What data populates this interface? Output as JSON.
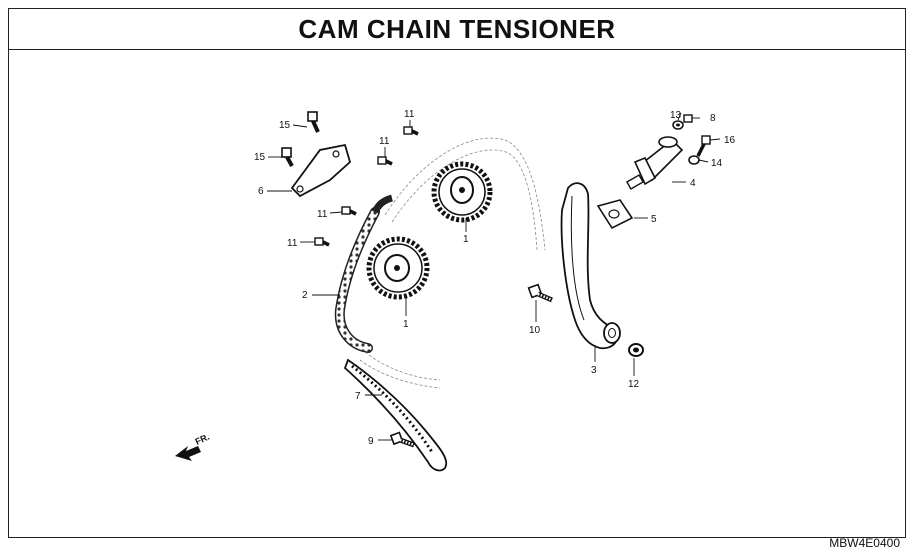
{
  "title": "CAM CHAIN TENSIONER",
  "drawing_code": "MBW4E0400",
  "direction_label": "FR.",
  "callouts": {
    "c1a": "1",
    "c1b": "1",
    "c2": "2",
    "c3": "3",
    "c4": "4",
    "c5": "5",
    "c6": "6",
    "c7": "7",
    "c8": "8",
    "c9": "9",
    "c10": "10",
    "c11a": "11",
    "c11b": "11",
    "c11c": "11",
    "c11d": "11",
    "c12": "12",
    "c13": "13",
    "c14": "14",
    "c15a": "15",
    "c15b": "15",
    "c16": "16"
  }
}
